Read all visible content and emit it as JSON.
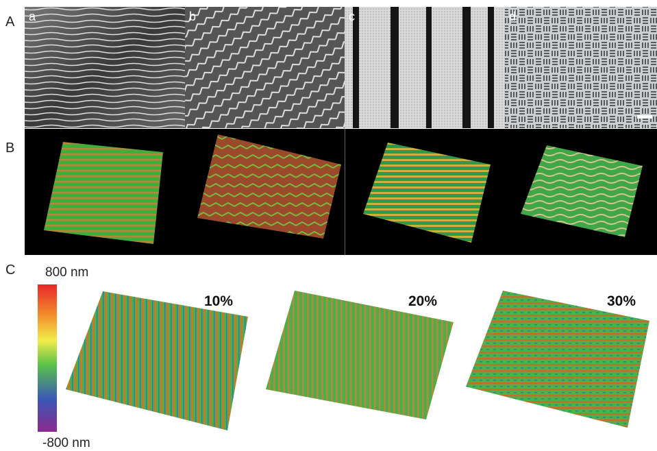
{
  "figure": {
    "row_a": {
      "label": "A",
      "panels": [
        "a",
        "b",
        "c",
        "d"
      ]
    },
    "row_b": {
      "label": "B"
    },
    "row_c": {
      "label": "C",
      "colorbar": {
        "max_label": "800 nm",
        "min_label": "-800 nm"
      },
      "strains": [
        "10%",
        "20%",
        "30%"
      ]
    }
  }
}
